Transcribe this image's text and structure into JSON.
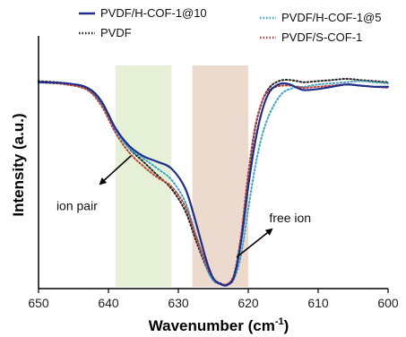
{
  "chart_data": {
    "type": "line",
    "xlabel": "Wavenumber (cm",
    "xlabel_sup": "-1",
    "xlabel_close": ")",
    "ylabel": "Intensity (a.u.)",
    "xlim": [
      650,
      600
    ],
    "ylim": [
      0,
      1
    ],
    "x_reversed": true,
    "x_ticks": [
      650,
      640,
      630,
      620,
      610,
      600
    ],
    "y_ticks_shown": false,
    "grid": false,
    "legend_position": "top",
    "bands": [
      {
        "x_from": 639,
        "x_to": 631,
        "color": "#dcebc9",
        "opacity": 0.75
      },
      {
        "x_from": 628,
        "x_to": 620,
        "color": "#ead3c6",
        "opacity": 0.85
      }
    ],
    "annotations": [
      {
        "text": "ion pair",
        "x": 644.5,
        "y": 0.335
      },
      {
        "text": "free ion",
        "x": 617,
        "y": 0.28
      }
    ],
    "series": [
      {
        "name": "PVDF/H-COF-1@10",
        "color": "#1f2e8c",
        "dash": "solid",
        "x": [
          650,
          646,
          643,
          641,
          639,
          637,
          635,
          633,
          631,
          629,
          627.5,
          626,
          625,
          624,
          623,
          622,
          621,
          620,
          619,
          618,
          617,
          616,
          615,
          614,
          613,
          612,
          610,
          608,
          606,
          604,
          602,
          600
        ],
        "y": [
          0.905,
          0.9,
          0.88,
          0.82,
          0.7,
          0.62,
          0.575,
          0.55,
          0.52,
          0.43,
          0.28,
          0.11,
          0.03,
          0.005,
          0.0,
          0.04,
          0.2,
          0.44,
          0.64,
          0.78,
          0.86,
          0.89,
          0.9,
          0.895,
          0.88,
          0.87,
          0.875,
          0.885,
          0.895,
          0.89,
          0.885,
          0.885
        ]
      },
      {
        "name": "PVDF",
        "color": "#222222",
        "dash": "dotted",
        "x": [
          650,
          646,
          643,
          641,
          639,
          637,
          635,
          633,
          631,
          629,
          627.5,
          626,
          625,
          624,
          623,
          622,
          621,
          620,
          619,
          618,
          617,
          616,
          615,
          614,
          613,
          612,
          610,
          608,
          606,
          604,
          602,
          600
        ],
        "y": [
          0.91,
          0.9,
          0.875,
          0.81,
          0.7,
          0.61,
          0.55,
          0.49,
          0.43,
          0.33,
          0.2,
          0.08,
          0.025,
          0.005,
          0.003,
          0.05,
          0.22,
          0.48,
          0.7,
          0.82,
          0.88,
          0.905,
          0.915,
          0.915,
          0.91,
          0.905,
          0.91,
          0.915,
          0.92,
          0.915,
          0.91,
          0.905
        ]
      },
      {
        "name": "PVDF/H-COF-1@5",
        "color": "#3aa5c9",
        "dash": "dotted",
        "x": [
          650,
          646,
          643,
          641,
          639,
          637,
          635,
          633,
          631,
          629,
          627.5,
          626,
          625,
          624,
          623,
          622,
          621,
          620,
          619,
          618,
          617,
          616,
          615,
          614,
          613,
          612,
          610,
          608,
          606,
          604,
          602,
          600
        ],
        "y": [
          0.905,
          0.895,
          0.87,
          0.81,
          0.69,
          0.61,
          0.565,
          0.52,
          0.47,
          0.37,
          0.22,
          0.08,
          0.02,
          0.005,
          0.002,
          0.03,
          0.14,
          0.34,
          0.53,
          0.67,
          0.76,
          0.82,
          0.86,
          0.875,
          0.885,
          0.885,
          0.895,
          0.9,
          0.905,
          0.91,
          0.905,
          0.9
        ]
      },
      {
        "name": "PVDF/S-COF-1",
        "color": "#b5453a",
        "dash": "dotted",
        "x": [
          650,
          646,
          643,
          641,
          639,
          637,
          635,
          633,
          631,
          629,
          627.5,
          626,
          625,
          624,
          623,
          622,
          621,
          620,
          619,
          618,
          617,
          616,
          615,
          614,
          613,
          612,
          610,
          608,
          606,
          604,
          602,
          600
        ],
        "y": [
          0.905,
          0.895,
          0.87,
          0.8,
          0.68,
          0.59,
          0.53,
          0.48,
          0.44,
          0.35,
          0.22,
          0.09,
          0.03,
          0.008,
          0.005,
          0.05,
          0.23,
          0.5,
          0.71,
          0.82,
          0.87,
          0.885,
          0.89,
          0.89,
          0.885,
          0.88,
          0.885,
          0.89,
          0.895,
          0.89,
          0.885,
          0.88
        ]
      }
    ]
  }
}
